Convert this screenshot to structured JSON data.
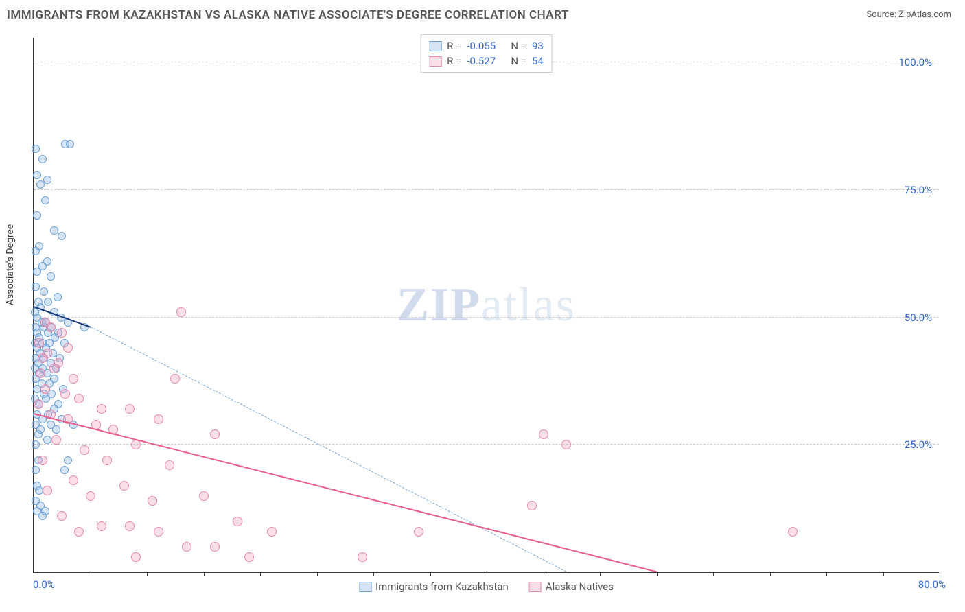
{
  "title": "IMMIGRANTS FROM KAZAKHSTAN VS ALASKA NATIVE ASSOCIATE'S DEGREE CORRELATION CHART",
  "source": "Source: ZipAtlas.com",
  "yaxis_title": "Associate's Degree",
  "xlim": [
    0,
    80
  ],
  "ylim": [
    0,
    105
  ],
  "xaxis_min_label": "0.0%",
  "xaxis_max_label": "80.0%",
  "yticks": [
    {
      "v": 25,
      "label": "25.0%"
    },
    {
      "v": 50,
      "label": "50.0%"
    },
    {
      "v": 75,
      "label": "75.0%"
    },
    {
      "v": 100,
      "label": "100.0%"
    }
  ],
  "xticks": [
    0,
    5,
    10,
    15,
    20,
    25,
    30,
    35,
    40,
    45,
    50,
    55,
    60,
    65,
    70,
    75,
    80
  ],
  "series": [
    {
      "name": "Immigrants from Kazakhstan",
      "fill": "rgba(135,180,230,0.35)",
      "stroke": "#6b9fd4",
      "r_label": "-0.055",
      "n_label": "93",
      "marker_r": 6,
      "regression": {
        "x1": 0,
        "y1": 52,
        "x2": 5,
        "y2": 48,
        "width": 2.5,
        "color": "#1a3a7a",
        "dash": false
      },
      "extrapolation": {
        "x1": 5,
        "y1": 48,
        "x2": 47,
        "y2": 0,
        "width": 1,
        "color": "#6b9fd4",
        "dash": true
      },
      "points": [
        [
          0.2,
          83
        ],
        [
          2.8,
          84
        ],
        [
          3.2,
          84
        ],
        [
          0.8,
          81
        ],
        [
          0.3,
          78
        ],
        [
          1.2,
          77
        ],
        [
          0.6,
          76
        ],
        [
          1.0,
          73
        ],
        [
          0.3,
          70
        ],
        [
          1.8,
          67
        ],
        [
          2.5,
          66
        ],
        [
          0.5,
          64
        ],
        [
          0.2,
          63
        ],
        [
          1.2,
          61
        ],
        [
          0.8,
          60
        ],
        [
          0.3,
          59
        ],
        [
          1.5,
          58
        ],
        [
          0.2,
          56
        ],
        [
          0.9,
          55
        ],
        [
          2.1,
          54
        ],
        [
          0.4,
          53
        ],
        [
          1.3,
          53
        ],
        [
          0.6,
          52
        ],
        [
          0.1,
          51
        ],
        [
          1.8,
          51
        ],
        [
          0.3,
          50
        ],
        [
          2.4,
          50
        ],
        [
          0.7,
          49
        ],
        [
          1.1,
          49
        ],
        [
          3.0,
          49
        ],
        [
          0.2,
          48
        ],
        [
          0.9,
          48
        ],
        [
          1.6,
          48
        ],
        [
          4.5,
          48
        ],
        [
          0.3,
          47
        ],
        [
          1.3,
          47
        ],
        [
          2.2,
          47
        ],
        [
          0.5,
          46
        ],
        [
          1.9,
          46
        ],
        [
          0.1,
          45
        ],
        [
          0.8,
          45
        ],
        [
          1.4,
          45
        ],
        [
          2.7,
          45
        ],
        [
          0.3,
          44
        ],
        [
          1.1,
          44
        ],
        [
          0.6,
          43
        ],
        [
          1.7,
          43
        ],
        [
          0.2,
          42
        ],
        [
          0.9,
          42
        ],
        [
          2.3,
          42
        ],
        [
          0.4,
          41
        ],
        [
          1.5,
          41
        ],
        [
          0.1,
          40
        ],
        [
          0.8,
          40
        ],
        [
          2.0,
          40
        ],
        [
          0.5,
          39
        ],
        [
          1.2,
          39
        ],
        [
          0.2,
          38
        ],
        [
          1.8,
          38
        ],
        [
          0.7,
          37
        ],
        [
          1.4,
          37
        ],
        [
          0.3,
          36
        ],
        [
          2.6,
          36
        ],
        [
          0.9,
          35
        ],
        [
          1.6,
          35
        ],
        [
          0.1,
          34
        ],
        [
          1.1,
          34
        ],
        [
          2.2,
          33
        ],
        [
          0.5,
          33
        ],
        [
          1.8,
          32
        ],
        [
          0.3,
          31
        ],
        [
          1.3,
          31
        ],
        [
          0.8,
          30
        ],
        [
          2.5,
          30
        ],
        [
          0.2,
          29
        ],
        [
          1.5,
          29
        ],
        [
          3.5,
          29
        ],
        [
          0.6,
          28
        ],
        [
          2.0,
          28
        ],
        [
          0.4,
          27
        ],
        [
          1.2,
          26
        ],
        [
          0.2,
          25
        ],
        [
          0.4,
          22
        ],
        [
          3.0,
          22
        ],
        [
          0.2,
          20
        ],
        [
          2.7,
          20
        ],
        [
          0.3,
          17
        ],
        [
          0.5,
          16
        ],
        [
          0.2,
          14
        ],
        [
          0.6,
          13
        ],
        [
          1.0,
          12
        ],
        [
          0.3,
          12
        ],
        [
          0.8,
          11
        ]
      ]
    },
    {
      "name": "Alaska Natives",
      "fill": "rgba(240,160,190,0.35)",
      "stroke": "#e687a8",
      "r_label": "-0.527",
      "n_label": "54",
      "marker_r": 7,
      "regression": {
        "x1": 0,
        "y1": 31,
        "x2": 55,
        "y2": 0,
        "width": 2.5,
        "color": "#e85d8c",
        "dash": false
      },
      "extrapolation": null,
      "points": [
        [
          1.0,
          49
        ],
        [
          1.5,
          48
        ],
        [
          2.5,
          47
        ],
        [
          0.5,
          45
        ],
        [
          3.0,
          44
        ],
        [
          1.2,
          43
        ],
        [
          0.8,
          42
        ],
        [
          2.2,
          41
        ],
        [
          13.0,
          51
        ],
        [
          1.8,
          40
        ],
        [
          0.6,
          39
        ],
        [
          3.5,
          38
        ],
        [
          1.0,
          36
        ],
        [
          2.8,
          35
        ],
        [
          12.5,
          38
        ],
        [
          4.0,
          34
        ],
        [
          0.4,
          33
        ],
        [
          6.0,
          32
        ],
        [
          8.5,
          32
        ],
        [
          1.5,
          31
        ],
        [
          3.0,
          30
        ],
        [
          11.0,
          30
        ],
        [
          5.5,
          29
        ],
        [
          7.0,
          28
        ],
        [
          16.0,
          27
        ],
        [
          2.0,
          26
        ],
        [
          9.0,
          25
        ],
        [
          4.5,
          24
        ],
        [
          0.8,
          22
        ],
        [
          6.5,
          22
        ],
        [
          12.0,
          21
        ],
        [
          45.0,
          27
        ],
        [
          47.0,
          25
        ],
        [
          3.5,
          18
        ],
        [
          8.0,
          17
        ],
        [
          1.2,
          16
        ],
        [
          5.0,
          15
        ],
        [
          15.0,
          15
        ],
        [
          10.5,
          14
        ],
        [
          44.0,
          13
        ],
        [
          2.5,
          11
        ],
        [
          18.0,
          10
        ],
        [
          6.0,
          9
        ],
        [
          8.5,
          9
        ],
        [
          4.0,
          8
        ],
        [
          11.0,
          8
        ],
        [
          21.0,
          8
        ],
        [
          34.0,
          8
        ],
        [
          67.0,
          8
        ],
        [
          13.5,
          5
        ],
        [
          16.0,
          5
        ],
        [
          9.0,
          3
        ],
        [
          19.0,
          3
        ],
        [
          29.0,
          3
        ]
      ]
    }
  ],
  "watermark": "ZIPatlas"
}
